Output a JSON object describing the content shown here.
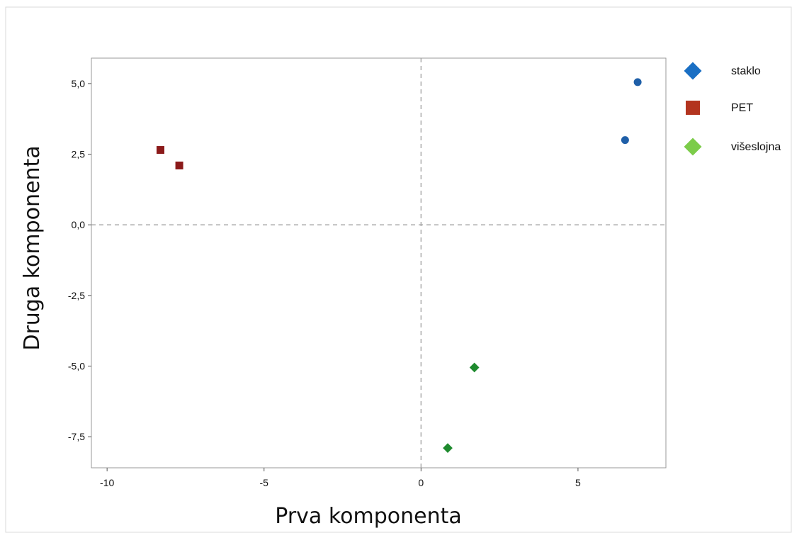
{
  "chart_data": {
    "type": "scatter",
    "xlabel": "Prva komponenta",
    "ylabel": "Druga komponenta",
    "xlim": [
      -10.5,
      7.8
    ],
    "ylim": [
      -8.6,
      5.9
    ],
    "x_ticks": [
      -10,
      -5,
      0,
      5
    ],
    "x_tick_labels": [
      "-10",
      "-5",
      "0",
      "5"
    ],
    "y_ticks": [
      5.0,
      2.5,
      0.0,
      -2.5,
      -5.0,
      -7.5
    ],
    "y_tick_labels": [
      "5,0",
      "2,5",
      "0,0",
      "-2,5",
      "-5,0",
      "-7,5"
    ],
    "reference_lines": {
      "x": 0,
      "y": 0,
      "style": "dashed"
    },
    "grid": false,
    "legend_position": "right",
    "series": [
      {
        "name": "staklo",
        "color": "#1f5fa8",
        "legend_color": "#1a6fc4",
        "marker": "circle",
        "legend_marker": "diamond",
        "points": [
          {
            "x": 6.9,
            "y": 5.05
          },
          {
            "x": 6.5,
            "y": 3.0
          }
        ]
      },
      {
        "name": "PET",
        "color": "#8b1a1a",
        "legend_color": "#b3341f",
        "marker": "square",
        "legend_marker": "square",
        "points": [
          {
            "x": -8.3,
            "y": 2.65
          },
          {
            "x": -7.7,
            "y": 2.1
          }
        ]
      },
      {
        "name": "višeslojna",
        "color": "#1e8a2e",
        "legend_color": "#7ccc4a",
        "marker": "diamond",
        "legend_marker": "diamond",
        "points": [
          {
            "x": 1.7,
            "y": -5.05
          },
          {
            "x": 0.85,
            "y": -7.9
          }
        ]
      }
    ]
  }
}
